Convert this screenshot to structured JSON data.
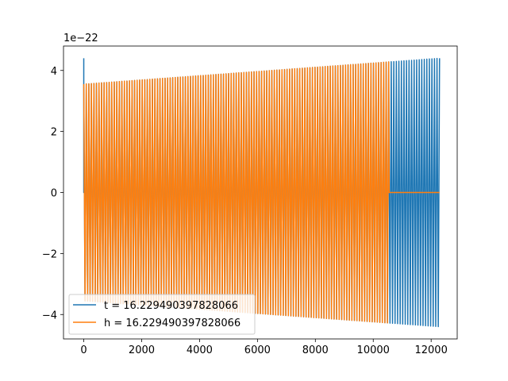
{
  "chart_data": {
    "type": "line",
    "title": "",
    "xlabel": "",
    "ylabel": "",
    "xlim": [
      -700,
      12900
    ],
    "ylim": [
      -4.8,
      4.8
    ],
    "y_scale_label": "1e−22",
    "x_ticks": [
      0,
      2000,
      4000,
      6000,
      8000,
      10000,
      12000
    ],
    "x_tick_labels": [
      "0",
      "2000",
      "4000",
      "6000",
      "8000",
      "10000",
      "12000"
    ],
    "y_ticks": [
      -4,
      -2,
      0,
      2,
      4
    ],
    "y_tick_labels": [
      "−4",
      "−2",
      "0",
      "2",
      "4"
    ],
    "grid": false,
    "legend_position": "lower-left",
    "series": [
      {
        "name": "t = 16.229490397828066",
        "color": "#1f77b4",
        "x_start": 0,
        "x_end": 12290,
        "amplitude_start": 3.55,
        "amplitude_end": 4.4,
        "initial_spike": 4.4,
        "cycles": 140,
        "flat_after": null
      },
      {
        "name": "h = 16.229490397828066",
        "color": "#ff7f0e",
        "x_start": 0,
        "x_end": 12290,
        "amplitude_start": 3.55,
        "amplitude_end": 4.4,
        "initial_spike": null,
        "cycles": 140,
        "flat_after": 10550
      }
    ]
  }
}
